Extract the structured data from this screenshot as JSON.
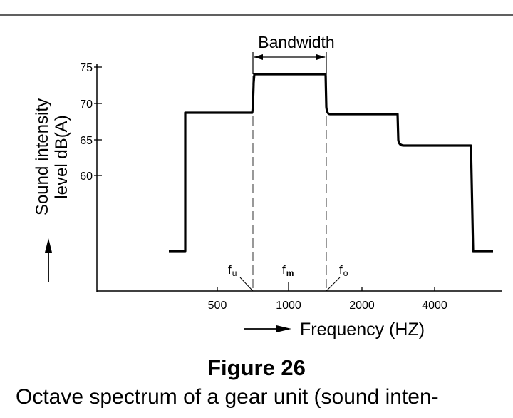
{
  "bandwidth_label": "Bandwidth",
  "y_label_line1": "Sound intensity",
  "y_label_line2": "level dB(A)",
  "x_label": "Frequency (HZ)",
  "figure_title": "Figure 26",
  "figure_caption": "Octave spectrum of a gear unit (sound inten-",
  "markers": {
    "f_lower": {
      "base": "f",
      "sub": "u"
    },
    "f_mid": {
      "base": "f",
      "sub": "m"
    },
    "f_upper": {
      "base": "f",
      "sub": "o"
    }
  },
  "y_ticks": [
    "75",
    "70",
    "65",
    "60"
  ],
  "x_ticks": [
    "500",
    "1000",
    "2000",
    "4000"
  ],
  "colors": {
    "ink": "#000000",
    "dash": "#555555"
  }
}
